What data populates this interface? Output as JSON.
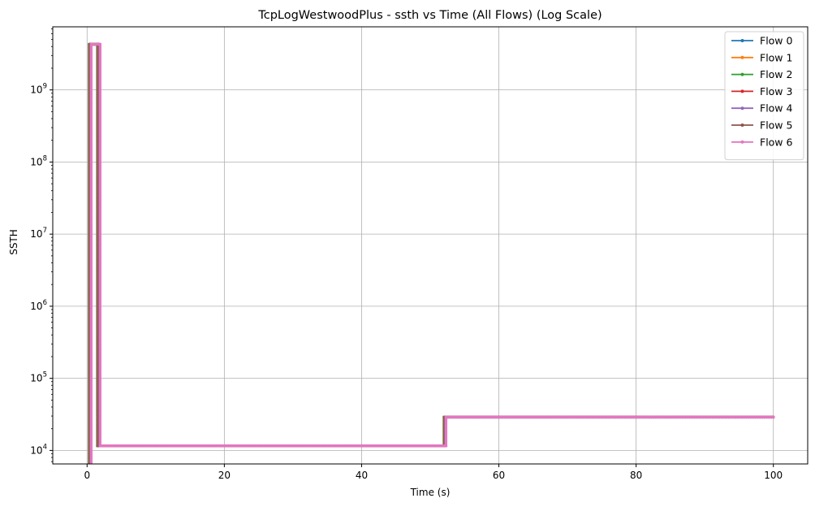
{
  "chart_data": {
    "type": "line",
    "title": "TcpLogWestwoodPlus - ssth vs Time (All Flows) (Log Scale)",
    "xlabel": "Time (s)",
    "ylabel": "SSTH",
    "xlim": [
      -5,
      105
    ],
    "ylim": [
      6500,
      7500000000
    ],
    "yscale": "log",
    "grid": true,
    "legend_position": "top-right",
    "x_ticks": [
      0,
      20,
      40,
      60,
      80,
      100
    ],
    "y_ticks": [
      {
        "value": 10000,
        "base": "10",
        "exp": "4"
      },
      {
        "value": 100000,
        "base": "10",
        "exp": "5"
      },
      {
        "value": 1000000,
        "base": "10",
        "exp": "6"
      },
      {
        "value": 10000000,
        "base": "10",
        "exp": "7"
      },
      {
        "value": 100000000,
        "base": "10",
        "exp": "8"
      },
      {
        "value": 1000000000,
        "base": "10",
        "exp": "9"
      }
    ],
    "series": [
      {
        "name": "Flow 0",
        "color": "#1f77b4",
        "x": [
          0.3,
          0.3,
          1.5,
          1.5,
          52.0,
          52.0,
          100.0
        ],
        "y": [
          6000,
          4294967295,
          4294967295,
          11584,
          11584,
          28960,
          28960
        ]
      },
      {
        "name": "Flow 1",
        "color": "#ff7f0e",
        "x": [
          0.35,
          0.35,
          1.55,
          1.55,
          52.05,
          52.05,
          100.0
        ],
        "y": [
          6000,
          4294967295,
          4294967295,
          11584,
          11584,
          28960,
          28960
        ]
      },
      {
        "name": "Flow 2",
        "color": "#2ca02c",
        "x": [
          0.4,
          0.4,
          1.6,
          1.6,
          52.1,
          52.1,
          100.0
        ],
        "y": [
          6000,
          4294967295,
          4294967295,
          11584,
          11584,
          28960,
          28960
        ]
      },
      {
        "name": "Flow 3",
        "color": "#d62728",
        "x": [
          0.45,
          0.45,
          1.65,
          1.65,
          52.15,
          52.15,
          100.0
        ],
        "y": [
          6000,
          4294967295,
          4294967295,
          11584,
          11584,
          28960,
          28960
        ]
      },
      {
        "name": "Flow 4",
        "color": "#9467bd",
        "x": [
          0.5,
          0.5,
          1.7,
          1.7,
          52.2,
          52.2,
          100.0
        ],
        "y": [
          6000,
          4294967295,
          4294967295,
          11584,
          11584,
          28960,
          28960
        ]
      },
      {
        "name": "Flow 5",
        "color": "#8c564b",
        "x": [
          0.55,
          0.55,
          1.75,
          1.75,
          52.25,
          52.25,
          100.0
        ],
        "y": [
          6000,
          4294967295,
          4294967295,
          11584,
          11584,
          28960,
          28960
        ]
      },
      {
        "name": "Flow 6",
        "color": "#e377c2",
        "x": [
          0.6,
          0.6,
          1.9,
          1.9,
          52.3,
          52.3,
          100.0
        ],
        "y": [
          6000,
          4294967295,
          4294967295,
          11584,
          11584,
          28960,
          28960
        ]
      }
    ]
  }
}
